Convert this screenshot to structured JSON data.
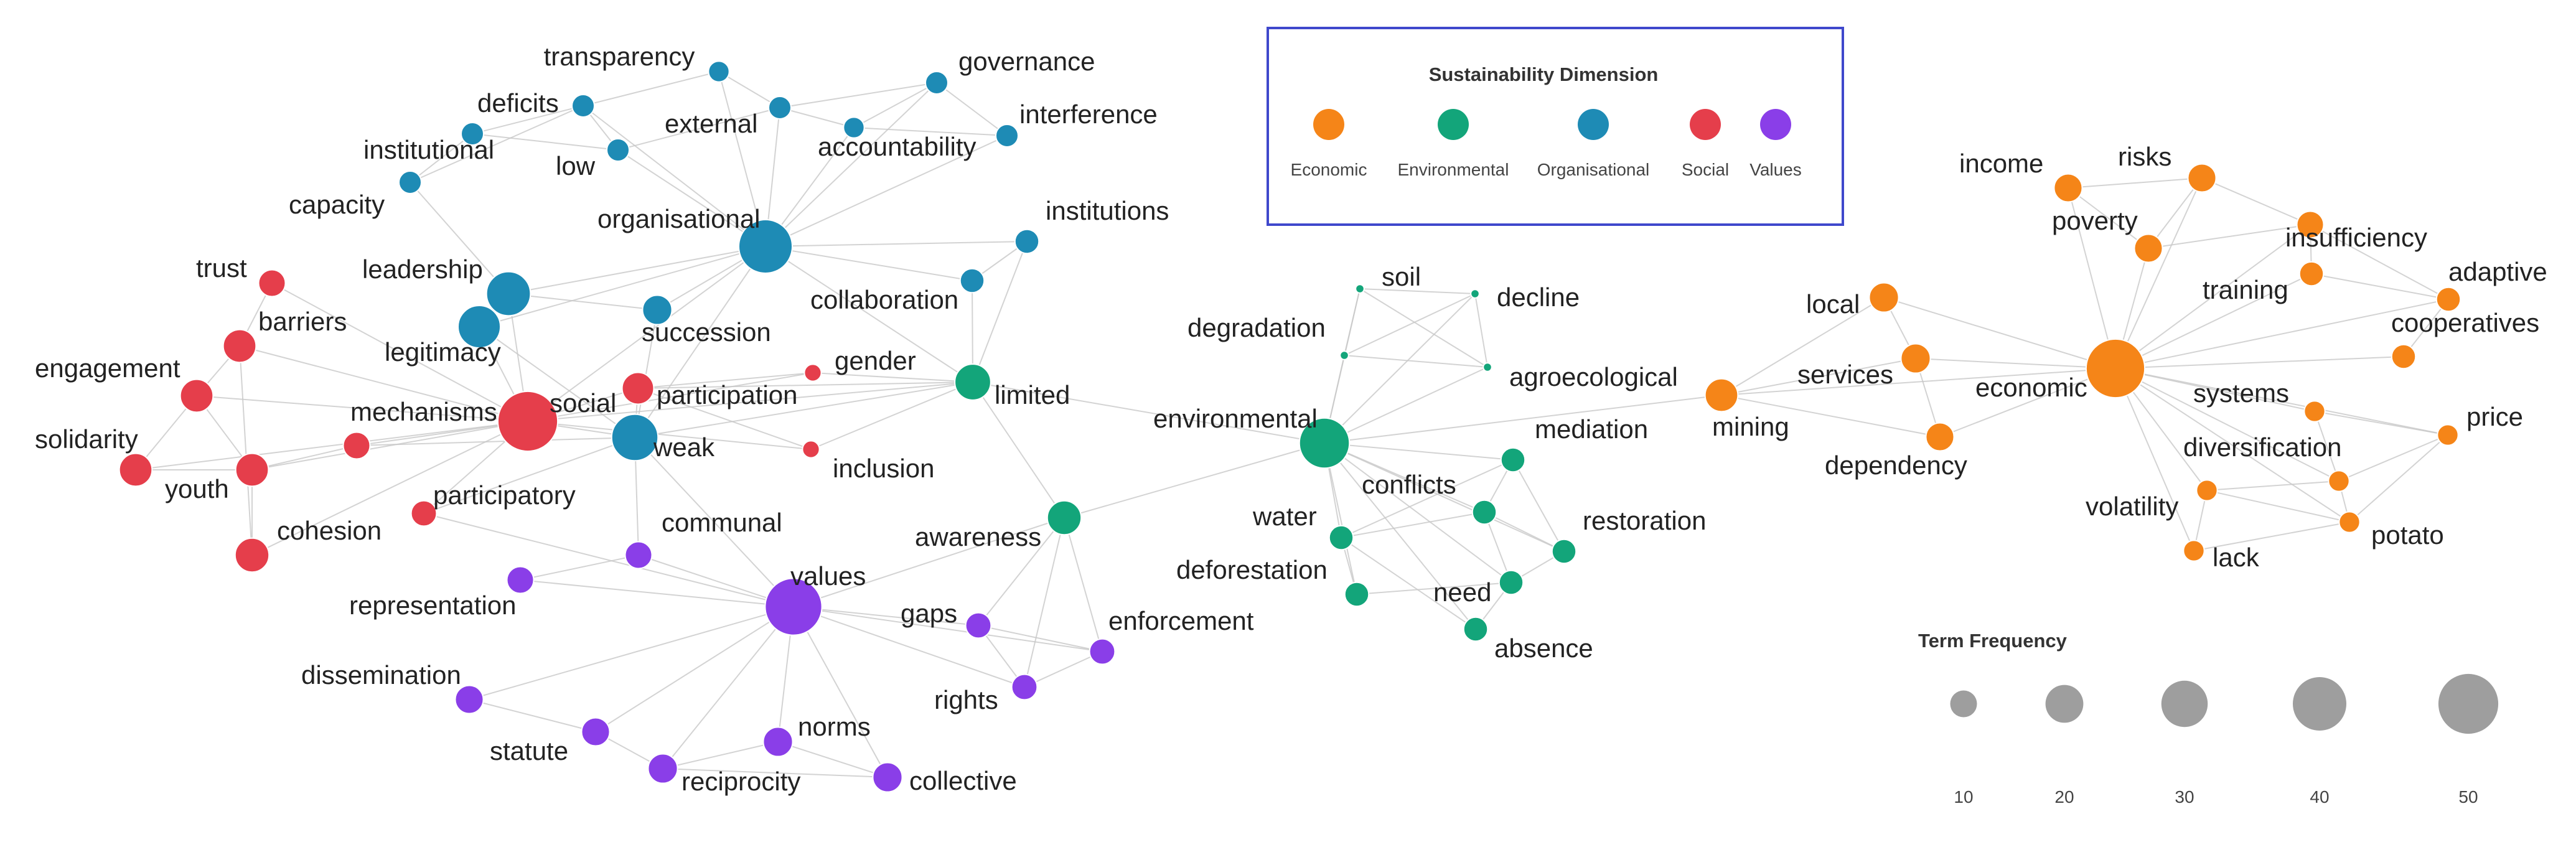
{
  "colors": {
    "Economic": "#f58518",
    "Environmental": "#13a57a",
    "Organisational": "#1e8bb5",
    "Social": "#e53e4b",
    "Values": "#8a3ee8",
    "edge": "#c8c8c8",
    "size_legend": "#9e9e9e",
    "legend_border": "#3f48cc"
  },
  "legend": {
    "title": "Sustainability Dimension",
    "items": [
      "Economic",
      "Environmental",
      "Organisational",
      "Social",
      "Values"
    ]
  },
  "size_legend": {
    "title": "Term Frequency",
    "values": [
      10,
      20,
      30,
      40,
      50
    ]
  },
  "nodes": [
    {
      "id": "transparency",
      "group": "Organisational",
      "freq": 6
    },
    {
      "id": "governance",
      "group": "Organisational",
      "freq": 7
    },
    {
      "id": "deficits",
      "group": "Organisational",
      "freq": 7
    },
    {
      "id": "interference",
      "group": "Organisational",
      "freq": 7
    },
    {
      "id": "external",
      "group": "Organisational",
      "freq": 7
    },
    {
      "id": "accountability",
      "group": "Organisational",
      "freq": 6
    },
    {
      "id": "institutional",
      "group": "Organisational",
      "freq": 7
    },
    {
      "id": "low",
      "group": "Organisational",
      "freq": 7
    },
    {
      "id": "capacity",
      "group": "Organisational",
      "freq": 7
    },
    {
      "id": "organisational",
      "group": "Organisational",
      "freq": 40
    },
    {
      "id": "institutions",
      "group": "Organisational",
      "freq": 8
    },
    {
      "id": "leadership",
      "group": "Organisational",
      "freq": 27
    },
    {
      "id": "legitimacy",
      "group": "Organisational",
      "freq": 25
    },
    {
      "id": "succession",
      "group": "Organisational",
      "freq": 12
    },
    {
      "id": "collaboration",
      "group": "Organisational",
      "freq": 8
    },
    {
      "id": "weak",
      "group": "Organisational",
      "freq": 30
    },
    {
      "id": "trust",
      "group": "Social",
      "freq": 10
    },
    {
      "id": "barriers",
      "group": "Social",
      "freq": 15
    },
    {
      "id": "engagement",
      "group": "Social",
      "freq": 15
    },
    {
      "id": "gender",
      "group": "Social",
      "freq": 4
    },
    {
      "id": "social",
      "group": "Social",
      "freq": 50
    },
    {
      "id": "participation",
      "group": "Social",
      "freq": 14
    },
    {
      "id": "mechanisms",
      "group": "Social",
      "freq": 10
    },
    {
      "id": "solidarity",
      "group": "Social",
      "freq": 15
    },
    {
      "id": "youth",
      "group": "Social",
      "freq": 15
    },
    {
      "id": "inclusion",
      "group": "Social",
      "freq": 4
    },
    {
      "id": "participatory",
      "group": "Social",
      "freq": 9
    },
    {
      "id": "cohesion",
      "group": "Social",
      "freq": 16
    },
    {
      "id": "limited",
      "group": "Environmental",
      "freq": 18
    },
    {
      "id": "soil",
      "group": "Environmental",
      "freq": 1
    },
    {
      "id": "decline",
      "group": "Environmental",
      "freq": 1
    },
    {
      "id": "degradation",
      "group": "Environmental",
      "freq": 1
    },
    {
      "id": "agroecological",
      "group": "Environmental",
      "freq": 1
    },
    {
      "id": "environmental",
      "group": "Environmental",
      "freq": 35
    },
    {
      "id": "mediation",
      "group": "Environmental",
      "freq": 8
    },
    {
      "id": "awareness",
      "group": "Environmental",
      "freq": 16
    },
    {
      "id": "conflicts",
      "group": "Environmental",
      "freq": 8
    },
    {
      "id": "water",
      "group": "Environmental",
      "freq": 8
    },
    {
      "id": "restoration",
      "group": "Environmental",
      "freq": 8
    },
    {
      "id": "deforestation",
      "group": "Environmental",
      "freq": 8
    },
    {
      "id": "need",
      "group": "Environmental",
      "freq": 8
    },
    {
      "id": "absence",
      "group": "Environmental",
      "freq": 8
    },
    {
      "id": "communal",
      "group": "Values",
      "freq": 10
    },
    {
      "id": "representation",
      "group": "Values",
      "freq": 10
    },
    {
      "id": "values",
      "group": "Values",
      "freq": 45
    },
    {
      "id": "gaps",
      "group": "Values",
      "freq": 9
    },
    {
      "id": "enforcement",
      "group": "Values",
      "freq": 9
    },
    {
      "id": "rights",
      "group": "Values",
      "freq": 9
    },
    {
      "id": "dissemination",
      "group": "Values",
      "freq": 11
    },
    {
      "id": "statute",
      "group": "Values",
      "freq": 11
    },
    {
      "id": "norms",
      "group": "Values",
      "freq": 12
    },
    {
      "id": "reciprocity",
      "group": "Values",
      "freq": 12
    },
    {
      "id": "collective",
      "group": "Values",
      "freq": 12
    },
    {
      "id": "income",
      "group": "Economic",
      "freq": 11
    },
    {
      "id": "risks",
      "group": "Economic",
      "freq": 11
    },
    {
      "id": "poverty",
      "group": "Economic",
      "freq": 11
    },
    {
      "id": "insufficiency",
      "group": "Economic",
      "freq": 10
    },
    {
      "id": "training",
      "group": "Economic",
      "freq": 8
    },
    {
      "id": "local",
      "group": "Economic",
      "freq": 12
    },
    {
      "id": "adaptive",
      "group": "Economic",
      "freq": 8
    },
    {
      "id": "cooperatives",
      "group": "Economic",
      "freq": 8
    },
    {
      "id": "services",
      "group": "Economic",
      "freq": 12
    },
    {
      "id": "economic",
      "group": "Economic",
      "freq": 48
    },
    {
      "id": "mining",
      "group": "Economic",
      "freq": 15
    },
    {
      "id": "dependency",
      "group": "Economic",
      "freq": 11
    },
    {
      "id": "systems",
      "group": "Economic",
      "freq": 6
    },
    {
      "id": "price",
      "group": "Economic",
      "freq": 6
    },
    {
      "id": "diversification",
      "group": "Economic",
      "freq": 6
    },
    {
      "id": "volatility",
      "group": "Economic",
      "freq": 6
    },
    {
      "id": "potato",
      "group": "Economic",
      "freq": 6
    },
    {
      "id": "lack",
      "group": "Economic",
      "freq": 6
    }
  ],
  "edges": [
    [
      "organisational",
      "transparency"
    ],
    [
      "organisational",
      "governance"
    ],
    [
      "organisational",
      "external"
    ],
    [
      "organisational",
      "accountability"
    ],
    [
      "organisational",
      "interference"
    ],
    [
      "organisational",
      "low"
    ],
    [
      "organisational",
      "deficits"
    ],
    [
      "organisational",
      "leadership"
    ],
    [
      "organisational",
      "legitimacy"
    ],
    [
      "organisational",
      "succession"
    ],
    [
      "organisational",
      "collaboration"
    ],
    [
      "organisational",
      "institutions"
    ],
    [
      "organisational",
      "weak"
    ],
    [
      "organisational",
      "social"
    ],
    [
      "organisational",
      "limited"
    ],
    [
      "transparency",
      "deficits"
    ],
    [
      "transparency",
      "external"
    ],
    [
      "deficits",
      "institutional"
    ],
    [
      "deficits",
      "low"
    ],
    [
      "deficits",
      "capacity"
    ],
    [
      "institutional",
      "capacity"
    ],
    [
      "institutional",
      "low"
    ],
    [
      "low",
      "external"
    ],
    [
      "external",
      "accountability"
    ],
    [
      "external",
      "governance"
    ],
    [
      "governance",
      "accountability"
    ],
    [
      "governance",
      "interference"
    ],
    [
      "accountability",
      "interference"
    ],
    [
      "capacity",
      "leadership"
    ],
    [
      "leadership",
      "legitimacy"
    ],
    [
      "leadership",
      "succession"
    ],
    [
      "legitimacy",
      "social"
    ],
    [
      "legitimacy",
      "weak"
    ],
    [
      "collaboration",
      "institutions"
    ],
    [
      "collaboration",
      "limited"
    ],
    [
      "institutions",
      "limited"
    ],
    [
      "succession",
      "weak"
    ],
    [
      "social",
      "trust"
    ],
    [
      "social",
      "barriers"
    ],
    [
      "social",
      "engagement"
    ],
    [
      "social",
      "solidarity"
    ],
    [
      "social",
      "youth"
    ],
    [
      "social",
      "cohesion"
    ],
    [
      "social",
      "mechanisms"
    ],
    [
      "social",
      "participatory"
    ],
    [
      "social",
      "participation"
    ],
    [
      "social",
      "gender"
    ],
    [
      "social",
      "inclusion"
    ],
    [
      "social",
      "weak"
    ],
    [
      "social",
      "leadership"
    ],
    [
      "social",
      "limited"
    ],
    [
      "trust",
      "barriers"
    ],
    [
      "barriers",
      "engagement"
    ],
    [
      "engagement",
      "solidarity"
    ],
    [
      "engagement",
      "youth"
    ],
    [
      "solidarity",
      "youth"
    ],
    [
      "youth",
      "cohesion"
    ],
    [
      "youth",
      "mechanisms"
    ],
    [
      "cohesion",
      "barriers"
    ],
    [
      "mechanisms",
      "weak"
    ],
    [
      "participatory",
      "weak"
    ],
    [
      "participation",
      "gender"
    ],
    [
      "participation",
      "inclusion"
    ],
    [
      "participation",
      "weak"
    ],
    [
      "participation",
      "limited"
    ],
    [
      "gender",
      "limited"
    ],
    [
      "inclusion",
      "limited"
    ],
    [
      "weak",
      "communal"
    ],
    [
      "weak",
      "values"
    ],
    [
      "weak",
      "limited"
    ],
    [
      "values",
      "communal"
    ],
    [
      "values",
      "representation"
    ],
    [
      "values",
      "gaps"
    ],
    [
      "values",
      "enforcement"
    ],
    [
      "values",
      "rights"
    ],
    [
      "values",
      "dissemination"
    ],
    [
      "values",
      "statute"
    ],
    [
      "values",
      "norms"
    ],
    [
      "values",
      "reciprocity"
    ],
    [
      "values",
      "collective"
    ],
    [
      "values",
      "awareness"
    ],
    [
      "values",
      "participatory"
    ],
    [
      "representation",
      "communal"
    ],
    [
      "dissemination",
      "statute"
    ],
    [
      "statute",
      "reciprocity"
    ],
    [
      "reciprocity",
      "norms"
    ],
    [
      "norms",
      "collective"
    ],
    [
      "reciprocity",
      "collective"
    ],
    [
      "gaps",
      "rights"
    ],
    [
      "gaps",
      "enforcement"
    ],
    [
      "rights",
      "enforcement"
    ],
    [
      "awareness",
      "limited"
    ],
    [
      "awareness",
      "gaps"
    ],
    [
      "awareness",
      "rights"
    ],
    [
      "awareness",
      "enforcement"
    ],
    [
      "awareness",
      "environmental"
    ],
    [
      "limited",
      "environmental"
    ],
    [
      "environmental",
      "soil"
    ],
    [
      "environmental",
      "decline"
    ],
    [
      "environmental",
      "degradation"
    ],
    [
      "environmental",
      "agroecological"
    ],
    [
      "environmental",
      "mediation"
    ],
    [
      "environmental",
      "conflicts"
    ],
    [
      "environmental",
      "water"
    ],
    [
      "environmental",
      "restoration"
    ],
    [
      "environmental",
      "deforestation"
    ],
    [
      "environmental",
      "need"
    ],
    [
      "environmental",
      "absence"
    ],
    [
      "environmental",
      "mining"
    ],
    [
      "soil",
      "decline"
    ],
    [
      "soil",
      "degradation"
    ],
    [
      "soil",
      "agroecological"
    ],
    [
      "decline",
      "degradation"
    ],
    [
      "decline",
      "agroecological"
    ],
    [
      "degradation",
      "agroecological"
    ],
    [
      "mediation",
      "conflicts"
    ],
    [
      "mediation",
      "water"
    ],
    [
      "conflicts",
      "water"
    ],
    [
      "conflicts",
      "restoration"
    ],
    [
      "conflicts",
      "need"
    ],
    [
      "water",
      "deforestation"
    ],
    [
      "water",
      "absence"
    ],
    [
      "deforestation",
      "need"
    ],
    [
      "need",
      "absence"
    ],
    [
      "restoration",
      "need"
    ],
    [
      "mediation",
      "restoration"
    ],
    [
      "mining",
      "local"
    ],
    [
      "mining",
      "services"
    ],
    [
      "mining",
      "dependency"
    ],
    [
      "mining",
      "economic"
    ],
    [
      "economic",
      "income"
    ],
    [
      "economic",
      "risks"
    ],
    [
      "economic",
      "poverty"
    ],
    [
      "economic",
      "insufficiency"
    ],
    [
      "economic",
      "training"
    ],
    [
      "economic",
      "local"
    ],
    [
      "economic",
      "adaptive"
    ],
    [
      "economic",
      "cooperatives"
    ],
    [
      "economic",
      "services"
    ],
    [
      "economic",
      "dependency"
    ],
    [
      "economic",
      "systems"
    ],
    [
      "economic",
      "price"
    ],
    [
      "economic",
      "diversification"
    ],
    [
      "economic",
      "volatility"
    ],
    [
      "economic",
      "potato"
    ],
    [
      "economic",
      "lack"
    ],
    [
      "income",
      "risks"
    ],
    [
      "income",
      "poverty"
    ],
    [
      "risks",
      "poverty"
    ],
    [
      "risks",
      "insufficiency"
    ],
    [
      "poverty",
      "insufficiency"
    ],
    [
      "insufficiency",
      "training"
    ],
    [
      "training",
      "adaptive"
    ],
    [
      "insufficiency",
      "adaptive"
    ],
    [
      "adaptive",
      "cooperatives"
    ],
    [
      "local",
      "services"
    ],
    [
      "services",
      "dependency"
    ],
    [
      "systems",
      "price"
    ],
    [
      "systems",
      "diversification"
    ],
    [
      "diversification",
      "volatility"
    ],
    [
      "diversification",
      "potato"
    ],
    [
      "volatility",
      "lack"
    ],
    [
      "potato",
      "lack"
    ],
    [
      "price",
      "potato"
    ],
    [
      "price",
      "diversification"
    ],
    [
      "volatility",
      "potato"
    ]
  ]
}
